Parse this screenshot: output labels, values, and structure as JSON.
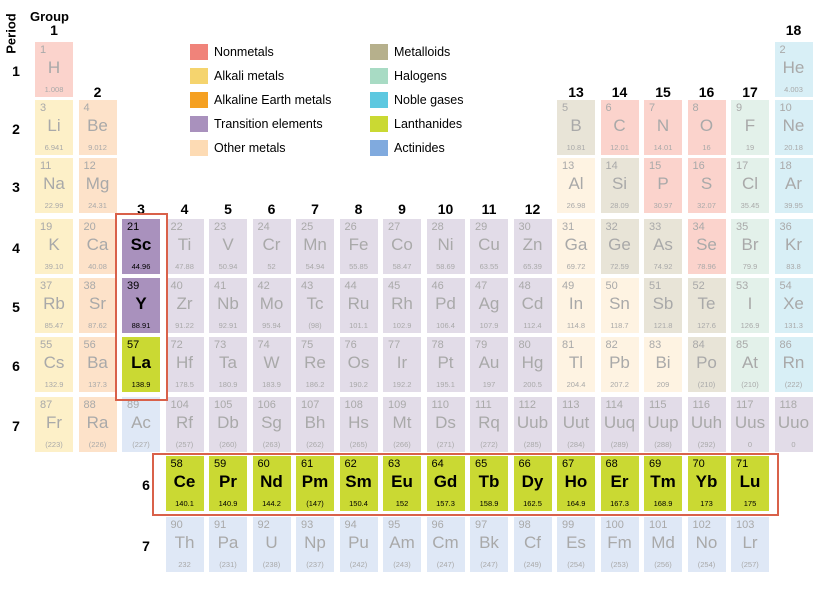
{
  "headings": {
    "period": "Period",
    "group": "Group"
  },
  "colors": {
    "nonmetals": "#fbd3cc",
    "alkali": "#fdf0c8",
    "alkaline": "#fde2c9",
    "transition": "#e2dce8",
    "transition_hl": "#a991bd",
    "other": "#fef3e2",
    "metalloids": "#e8e4d7",
    "halogens": "#e3f1ea",
    "noble": "#d8eff6",
    "lanthanides_hl": "#cad933",
    "actinides": "#dfe8f6",
    "frame": "#d9614a"
  },
  "legend": [
    {
      "label": "Nonmetals",
      "color": "#f0837a"
    },
    {
      "label": "Alkali metals",
      "color": "#f5d46e"
    },
    {
      "label": "Alkaline Earth metals",
      "color": "#f5a021"
    },
    {
      "label": "Transition elements",
      "color": "#a991bd"
    },
    {
      "label": "Other metals",
      "color": "#fddbb4"
    },
    {
      "label": "Metalloids",
      "color": "#b6b08c"
    },
    {
      "label": "Halogens",
      "color": "#a8dbc4"
    },
    {
      "label": "Noble gases",
      "color": "#5dc8e0"
    },
    {
      "label": "Lanthanides",
      "color": "#cad933"
    },
    {
      "label": "Actinides",
      "color": "#80aade"
    }
  ],
  "group_labels": [
    "1",
    "2",
    "3",
    "4",
    "5",
    "6",
    "7",
    "8",
    "9",
    "10",
    "11",
    "12",
    "13",
    "14",
    "15",
    "16",
    "17",
    "18"
  ],
  "period_labels": [
    "1",
    "2",
    "3",
    "4",
    "5",
    "6",
    "7"
  ],
  "series_period_labels": [
    "6",
    "7"
  ],
  "elements": [
    {
      "n": "1",
      "s": "H",
      "m": "1.008",
      "g": 1,
      "p": 1,
      "c": "nonmetals"
    },
    {
      "n": "2",
      "s": "He",
      "m": "4.003",
      "g": 18,
      "p": 1,
      "c": "noble"
    },
    {
      "n": "3",
      "s": "Li",
      "m": "6.941",
      "g": 1,
      "p": 2,
      "c": "alkali"
    },
    {
      "n": "4",
      "s": "Be",
      "m": "9.012",
      "g": 2,
      "p": 2,
      "c": "alkaline"
    },
    {
      "n": "5",
      "s": "B",
      "m": "10.81",
      "g": 13,
      "p": 2,
      "c": "metalloids"
    },
    {
      "n": "6",
      "s": "C",
      "m": "12.01",
      "g": 14,
      "p": 2,
      "c": "nonmetals"
    },
    {
      "n": "7",
      "s": "N",
      "m": "14.01",
      "g": 15,
      "p": 2,
      "c": "nonmetals"
    },
    {
      "n": "8",
      "s": "O",
      "m": "16",
      "g": 16,
      "p": 2,
      "c": "nonmetals"
    },
    {
      "n": "9",
      "s": "F",
      "m": "19",
      "g": 17,
      "p": 2,
      "c": "halogens"
    },
    {
      "n": "10",
      "s": "Ne",
      "m": "20.18",
      "g": 18,
      "p": 2,
      "c": "noble"
    },
    {
      "n": "11",
      "s": "Na",
      "m": "22.99",
      "g": 1,
      "p": 3,
      "c": "alkali"
    },
    {
      "n": "12",
      "s": "Mg",
      "m": "24.31",
      "g": 2,
      "p": 3,
      "c": "alkaline"
    },
    {
      "n": "13",
      "s": "Al",
      "m": "26.98",
      "g": 13,
      "p": 3,
      "c": "other"
    },
    {
      "n": "14",
      "s": "Si",
      "m": "28.09",
      "g": 14,
      "p": 3,
      "c": "metalloids"
    },
    {
      "n": "15",
      "s": "P",
      "m": "30.97",
      "g": 15,
      "p": 3,
      "c": "nonmetals"
    },
    {
      "n": "16",
      "s": "S",
      "m": "32.07",
      "g": 16,
      "p": 3,
      "c": "nonmetals"
    },
    {
      "n": "17",
      "s": "Cl",
      "m": "35.45",
      "g": 17,
      "p": 3,
      "c": "halogens"
    },
    {
      "n": "18",
      "s": "Ar",
      "m": "39.95",
      "g": 18,
      "p": 3,
      "c": "noble"
    },
    {
      "n": "19",
      "s": "K",
      "m": "39.10",
      "g": 1,
      "p": 4,
      "c": "alkali"
    },
    {
      "n": "20",
      "s": "Ca",
      "m": "40.08",
      "g": 2,
      "p": 4,
      "c": "alkaline"
    },
    {
      "n": "21",
      "s": "Sc",
      "m": "44.96",
      "g": 3,
      "p": 4,
      "c": "transition_hl",
      "hl": true
    },
    {
      "n": "22",
      "s": "Ti",
      "m": "47.88",
      "g": 4,
      "p": 4,
      "c": "transition"
    },
    {
      "n": "23",
      "s": "V",
      "m": "50.94",
      "g": 5,
      "p": 4,
      "c": "transition"
    },
    {
      "n": "24",
      "s": "Cr",
      "m": "52",
      "g": 6,
      "p": 4,
      "c": "transition"
    },
    {
      "n": "25",
      "s": "Mn",
      "m": "54.94",
      "g": 7,
      "p": 4,
      "c": "transition"
    },
    {
      "n": "26",
      "s": "Fe",
      "m": "55.85",
      "g": 8,
      "p": 4,
      "c": "transition"
    },
    {
      "n": "27",
      "s": "Co",
      "m": "58.47",
      "g": 9,
      "p": 4,
      "c": "transition"
    },
    {
      "n": "28",
      "s": "Ni",
      "m": "58.69",
      "g": 10,
      "p": 4,
      "c": "transition"
    },
    {
      "n": "29",
      "s": "Cu",
      "m": "63.55",
      "g": 11,
      "p": 4,
      "c": "transition"
    },
    {
      "n": "30",
      "s": "Zn",
      "m": "65.39",
      "g": 12,
      "p": 4,
      "c": "transition"
    },
    {
      "n": "31",
      "s": "Ga",
      "m": "69.72",
      "g": 13,
      "p": 4,
      "c": "other"
    },
    {
      "n": "32",
      "s": "Ge",
      "m": "72.59",
      "g": 14,
      "p": 4,
      "c": "metalloids"
    },
    {
      "n": "33",
      "s": "As",
      "m": "74.92",
      "g": 15,
      "p": 4,
      "c": "metalloids"
    },
    {
      "n": "34",
      "s": "Se",
      "m": "78.96",
      "g": 16,
      "p": 4,
      "c": "nonmetals"
    },
    {
      "n": "35",
      "s": "Br",
      "m": "79.9",
      "g": 17,
      "p": 4,
      "c": "halogens"
    },
    {
      "n": "36",
      "s": "Kr",
      "m": "83.8",
      "g": 18,
      "p": 4,
      "c": "noble"
    },
    {
      "n": "37",
      "s": "Rb",
      "m": "85.47",
      "g": 1,
      "p": 5,
      "c": "alkali"
    },
    {
      "n": "38",
      "s": "Sr",
      "m": "87.62",
      "g": 2,
      "p": 5,
      "c": "alkaline"
    },
    {
      "n": "39",
      "s": "Y",
      "m": "88.91",
      "g": 3,
      "p": 5,
      "c": "transition_hl",
      "hl": true
    },
    {
      "n": "40",
      "s": "Zr",
      "m": "91.22",
      "g": 4,
      "p": 5,
      "c": "transition"
    },
    {
      "n": "41",
      "s": "Nb",
      "m": "92.91",
      "g": 5,
      "p": 5,
      "c": "transition"
    },
    {
      "n": "42",
      "s": "Mo",
      "m": "95.94",
      "g": 6,
      "p": 5,
      "c": "transition"
    },
    {
      "n": "43",
      "s": "Tc",
      "m": "(98)",
      "g": 7,
      "p": 5,
      "c": "transition"
    },
    {
      "n": "44",
      "s": "Ru",
      "m": "101.1",
      "g": 8,
      "p": 5,
      "c": "transition"
    },
    {
      "n": "45",
      "s": "Rh",
      "m": "102.9",
      "g": 9,
      "p": 5,
      "c": "transition"
    },
    {
      "n": "46",
      "s": "Pd",
      "m": "106.4",
      "g": 10,
      "p": 5,
      "c": "transition"
    },
    {
      "n": "47",
      "s": "Ag",
      "m": "107.9",
      "g": 11,
      "p": 5,
      "c": "transition"
    },
    {
      "n": "48",
      "s": "Cd",
      "m": "112.4",
      "g": 12,
      "p": 5,
      "c": "transition"
    },
    {
      "n": "49",
      "s": "In",
      "m": "114.8",
      "g": 13,
      "p": 5,
      "c": "other"
    },
    {
      "n": "50",
      "s": "Sn",
      "m": "118.7",
      "g": 14,
      "p": 5,
      "c": "other"
    },
    {
      "n": "51",
      "s": "Sb",
      "m": "121.8",
      "g": 15,
      "p": 5,
      "c": "metalloids"
    },
    {
      "n": "52",
      "s": "Te",
      "m": "127.6",
      "g": 16,
      "p": 5,
      "c": "metalloids"
    },
    {
      "n": "53",
      "s": "I",
      "m": "126.9",
      "g": 17,
      "p": 5,
      "c": "halogens"
    },
    {
      "n": "54",
      "s": "Xe",
      "m": "131.3",
      "g": 18,
      "p": 5,
      "c": "noble"
    },
    {
      "n": "55",
      "s": "Cs",
      "m": "132.9",
      "g": 1,
      "p": 6,
      "c": "alkali"
    },
    {
      "n": "56",
      "s": "Ba",
      "m": "137.3",
      "g": 2,
      "p": 6,
      "c": "alkaline"
    },
    {
      "n": "57",
      "s": "La",
      "m": "138.9",
      "g": 3,
      "p": 6,
      "c": "lanthanides_hl",
      "hl": true
    },
    {
      "n": "72",
      "s": "Hf",
      "m": "178.5",
      "g": 4,
      "p": 6,
      "c": "transition"
    },
    {
      "n": "73",
      "s": "Ta",
      "m": "180.9",
      "g": 5,
      "p": 6,
      "c": "transition"
    },
    {
      "n": "74",
      "s": "W",
      "m": "183.9",
      "g": 6,
      "p": 6,
      "c": "transition"
    },
    {
      "n": "75",
      "s": "Re",
      "m": "186.2",
      "g": 7,
      "p": 6,
      "c": "transition"
    },
    {
      "n": "76",
      "s": "Os",
      "m": "190.2",
      "g": 8,
      "p": 6,
      "c": "transition"
    },
    {
      "n": "77",
      "s": "Ir",
      "m": "192.2",
      "g": 9,
      "p": 6,
      "c": "transition"
    },
    {
      "n": "78",
      "s": "Pt",
      "m": "195.1",
      "g": 10,
      "p": 6,
      "c": "transition"
    },
    {
      "n": "79",
      "s": "Au",
      "m": "197",
      "g": 11,
      "p": 6,
      "c": "transition"
    },
    {
      "n": "80",
      "s": "Hg",
      "m": "200.5",
      "g": 12,
      "p": 6,
      "c": "transition"
    },
    {
      "n": "81",
      "s": "Tl",
      "m": "204.4",
      "g": 13,
      "p": 6,
      "c": "other"
    },
    {
      "n": "82",
      "s": "Pb",
      "m": "207.2",
      "g": 14,
      "p": 6,
      "c": "other"
    },
    {
      "n": "83",
      "s": "Bi",
      "m": "209",
      "g": 15,
      "p": 6,
      "c": "other"
    },
    {
      "n": "84",
      "s": "Po",
      "m": "(210)",
      "g": 16,
      "p": 6,
      "c": "metalloids"
    },
    {
      "n": "85",
      "s": "At",
      "m": "(210)",
      "g": 17,
      "p": 6,
      "c": "halogens"
    },
    {
      "n": "86",
      "s": "Rn",
      "m": "(222)",
      "g": 18,
      "p": 6,
      "c": "noble"
    },
    {
      "n": "87",
      "s": "Fr",
      "m": "(223)",
      "g": 1,
      "p": 7,
      "c": "alkali"
    },
    {
      "n": "88",
      "s": "Ra",
      "m": "(226)",
      "g": 2,
      "p": 7,
      "c": "alkaline"
    },
    {
      "n": "89",
      "s": "Ac",
      "m": "(227)",
      "g": 3,
      "p": 7,
      "c": "actinides"
    },
    {
      "n": "104",
      "s": "Rf",
      "m": "(257)",
      "g": 4,
      "p": 7,
      "c": "transition"
    },
    {
      "n": "105",
      "s": "Db",
      "m": "(260)",
      "g": 5,
      "p": 7,
      "c": "transition"
    },
    {
      "n": "106",
      "s": "Sg",
      "m": "(263)",
      "g": 6,
      "p": 7,
      "c": "transition"
    },
    {
      "n": "107",
      "s": "Bh",
      "m": "(262)",
      "g": 7,
      "p": 7,
      "c": "transition"
    },
    {
      "n": "108",
      "s": "Hs",
      "m": "(265)",
      "g": 8,
      "p": 7,
      "c": "transition"
    },
    {
      "n": "109",
      "s": "Mt",
      "m": "(266)",
      "g": 9,
      "p": 7,
      "c": "transition"
    },
    {
      "n": "110",
      "s": "Ds",
      "m": "(271)",
      "g": 10,
      "p": 7,
      "c": "transition"
    },
    {
      "n": "111",
      "s": "Rq",
      "m": "(272)",
      "g": 11,
      "p": 7,
      "c": "transition"
    },
    {
      "n": "112",
      "s": "Uub",
      "m": "(285)",
      "g": 12,
      "p": 7,
      "c": "transition"
    },
    {
      "n": "113",
      "s": "Uut",
      "m": "(284)",
      "g": 13,
      "p": 7,
      "c": "transition"
    },
    {
      "n": "114",
      "s": "Uuq",
      "m": "(289)",
      "g": 14,
      "p": 7,
      "c": "transition"
    },
    {
      "n": "115",
      "s": "Uup",
      "m": "(288)",
      "g": 15,
      "p": 7,
      "c": "transition"
    },
    {
      "n": "116",
      "s": "Uuh",
      "m": "(292)",
      "g": 16,
      "p": 7,
      "c": "transition"
    },
    {
      "n": "117",
      "s": "Uus",
      "m": "0",
      "g": 17,
      "p": 7,
      "c": "transition"
    },
    {
      "n": "118",
      "s": "Uuo",
      "m": "0",
      "g": 18,
      "p": 7,
      "c": "transition"
    }
  ],
  "lanthanides": [
    {
      "n": "58",
      "s": "Ce",
      "m": "140.1"
    },
    {
      "n": "59",
      "s": "Pr",
      "m": "140.9"
    },
    {
      "n": "60",
      "s": "Nd",
      "m": "144.2"
    },
    {
      "n": "61",
      "s": "Pm",
      "m": "(147)"
    },
    {
      "n": "62",
      "s": "Sm",
      "m": "150.4"
    },
    {
      "n": "63",
      "s": "Eu",
      "m": "152"
    },
    {
      "n": "64",
      "s": "Gd",
      "m": "157.3"
    },
    {
      "n": "65",
      "s": "Tb",
      "m": "158.9"
    },
    {
      "n": "66",
      "s": "Dy",
      "m": "162.5"
    },
    {
      "n": "67",
      "s": "Ho",
      "m": "164.9"
    },
    {
      "n": "68",
      "s": "Er",
      "m": "167.3"
    },
    {
      "n": "69",
      "s": "Tm",
      "m": "168.9"
    },
    {
      "n": "70",
      "s": "Yb",
      "m": "173"
    },
    {
      "n": "71",
      "s": "Lu",
      "m": "175"
    }
  ],
  "actinides": [
    {
      "n": "90",
      "s": "Th",
      "m": "232"
    },
    {
      "n": "91",
      "s": "Pa",
      "m": "(231)"
    },
    {
      "n": "92",
      "s": "U",
      "m": "(238)"
    },
    {
      "n": "93",
      "s": "Np",
      "m": "(237)"
    },
    {
      "n": "94",
      "s": "Pu",
      "m": "(242)"
    },
    {
      "n": "95",
      "s": "Am",
      "m": "(243)"
    },
    {
      "n": "96",
      "s": "Cm",
      "m": "(247)"
    },
    {
      "n": "97",
      "s": "Bk",
      "m": "(247)"
    },
    {
      "n": "98",
      "s": "Cf",
      "m": "(249)"
    },
    {
      "n": "99",
      "s": "Es",
      "m": "(254)"
    },
    {
      "n": "100",
      "s": "Fm",
      "m": "(253)"
    },
    {
      "n": "101",
      "s": "Md",
      "m": "(256)"
    },
    {
      "n": "102",
      "s": "No",
      "m": "(254)"
    },
    {
      "n": "103",
      "s": "Lr",
      "m": "(257)"
    }
  ]
}
